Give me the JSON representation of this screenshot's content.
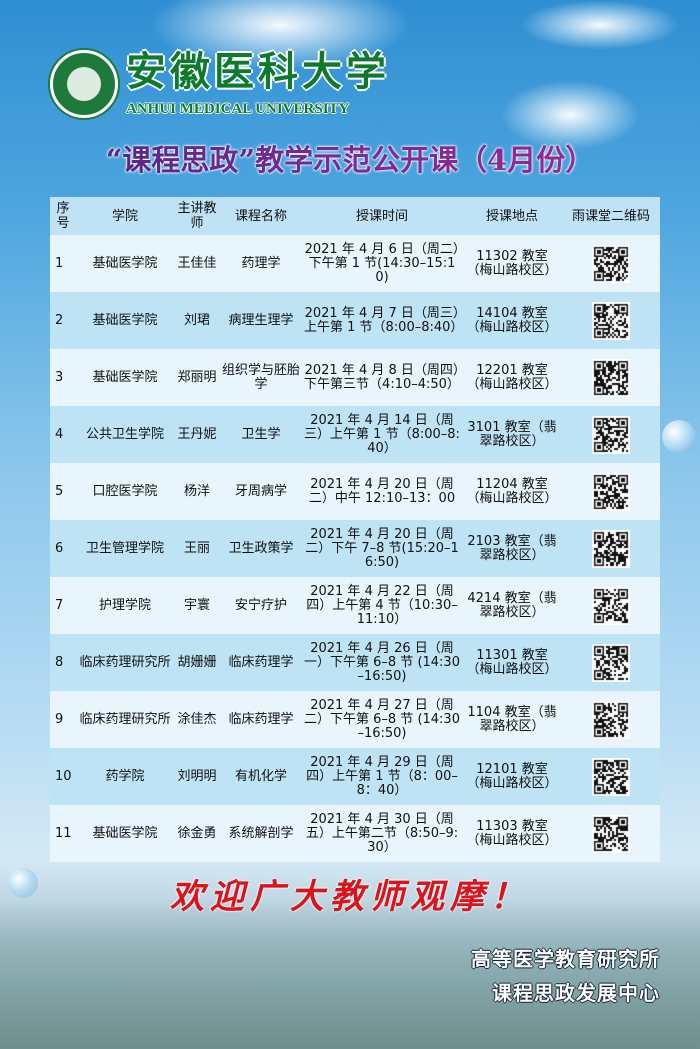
{
  "header": {
    "university_cn": "安徽医科大学",
    "university_en": "ANHUI MEDICAL UNIVERSITY",
    "title": "“课程思政”教学示范公开课（4月份）"
  },
  "table": {
    "columns": [
      "序号",
      "学院",
      "主讲教师",
      "课程名称",
      "授课时间",
      "授课地点",
      "雨课堂二维码"
    ],
    "rows": [
      {
        "no": "1",
        "college": "基础医学院",
        "teacher": "王佳佳",
        "course": "药理学",
        "time": "2021 年 4 月 6 日（周二）下午第 1 节(14:30–15:10)",
        "place": "11302 教室（梅山路校区）"
      },
      {
        "no": "2",
        "college": "基础医学院",
        "teacher": "刘珺",
        "course": "病理生理学",
        "time": "2021 年 4 月 7 日（周三）上午第 1 节（8:00–8:40）",
        "place": "14104 教室（梅山路校区）"
      },
      {
        "no": "3",
        "college": "基础医学院",
        "teacher": "郑丽明",
        "course": "组织学与胚胎学",
        "time": "2021 年 4 月 8 日（周四）下午第三节（4:10–4:50）",
        "place": "12201 教室（梅山路校区）"
      },
      {
        "no": "4",
        "college": "公共卫生学院",
        "teacher": "王丹妮",
        "course": "卫生学",
        "time": "2021 年 4 月 14 日（周三）上午第 1 节（8:00–8:40）",
        "place": "3101 教室（翡翠路校区）"
      },
      {
        "no": "5",
        "college": "口腔医学院",
        "teacher": "杨洋",
        "course": "牙周病学",
        "time": "2021 年 4 月 20 日（周二）中午 12:10–13：00",
        "place": "11204 教室（梅山路校区）"
      },
      {
        "no": "6",
        "college": "卫生管理学院",
        "teacher": "王丽",
        "course": "卫生政策学",
        "time": "2021 年 4 月 20 日（周二）下午 7–8 节(15:20–16:50)",
        "place": "2103 教室（翡翠路校区）"
      },
      {
        "no": "7",
        "college": "护理学院",
        "teacher": "宇寰",
        "course": "安宁疗护",
        "time": "2021 年 4 月 22 日（周四）上午第 4 节（10:30–11:10）",
        "place": "4214 教室（翡翠路校区）"
      },
      {
        "no": "8",
        "college": "临床药理研究所",
        "teacher": "胡姗姗",
        "course": "临床药理学",
        "time": "2021 年 4 月 26 日（周一）下午第 6–8 节 (14:30–16:50)",
        "place": "11301 教室（梅山路校区）"
      },
      {
        "no": "9",
        "college": "临床药理研究所",
        "teacher": "涂佳杰",
        "course": "临床药理学",
        "time": "2021 年 4 月 27 日（周二）下午第 6–8 节 (14:30–16:50)",
        "place": "1104 教室（翡翠路校区）"
      },
      {
        "no": "10",
        "college": "药学院",
        "teacher": "刘明明",
        "course": "有机化学",
        "time": "2021 年 4 月 29 日（周四）上午第 1 节（8：00–8：40）",
        "place": "12101 教室（梅山路校区）"
      },
      {
        "no": "11",
        "college": "基础医学院",
        "teacher": "徐金勇",
        "course": "系统解剖学",
        "time": "2021 年 4 月 30 日（周五）上午第二节（8:50–9:30）",
        "place": "11303 教室（梅山路校区）"
      }
    ]
  },
  "footer": {
    "slogan": "欢迎广大教师观摩！",
    "org1": "高等医学教育研究所",
    "org2": "课程思政发展中心"
  },
  "colors": {
    "title": "#7a2a95",
    "university": "#0f7a2e",
    "slogan": "#d8141c",
    "row_light": "#e8f5fc",
    "row_dark": "#bde3f5"
  }
}
